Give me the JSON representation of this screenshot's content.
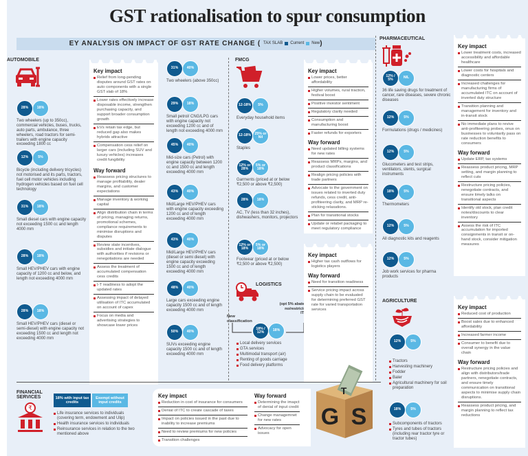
{
  "title": "GST rationalisation to spur consumption",
  "ey_bar": {
    "label": "EY ANALYSIS ON IMPACT OF GST RATE CHANGE (",
    "tax_slab": "TAX SLAB",
    "current": "Current",
    "new": "New",
    "close": ")"
  },
  "colors": {
    "current": "#0f5a8f",
    "new": "#5ab8e4",
    "accent_red": "#d0202a"
  },
  "automobile": {
    "title": "AUTOMOBILE",
    "icon": "car-wrench-icon",
    "rates": [
      {
        "current": "28%",
        "new": "18%",
        "desc": "Two wheelers (up to 350cc), commercial vehicles, buses, trucks, auto parts, ambulance, three wheelers, road tractors for semi-trailers with engine capacity exceeding 1800 cc"
      },
      {
        "current": "12%",
        "new": "5%",
        "desc": "Bicycle (including delivery tricycles) not motorised and its parts, tractors, fuel cell motor vehicles including hydrogen vehicles based on fuel cell technology"
      },
      {
        "current": "31%",
        "new": "18%",
        "desc": "Small diesel cars with engine capacity not exceeding 1500 cc and length 4000 mm"
      },
      {
        "current": "28%",
        "new": "18%",
        "desc": "Small HEV/PHEV cars with engine capacity of 1200 cc and below, and length not exceeding 4000 mm"
      },
      {
        "current": "28%",
        "new": "18%",
        "desc": "Small HEV/PHEV cars (diesel or semi-diesel) with engine capacity not exceeding 1500 cc and length not exceeding 4000 mm"
      }
    ],
    "rates_right": [
      {
        "current": "31%",
        "new": "40%",
        "desc": "Two wheelers (above 350cc)"
      },
      {
        "current": "29%",
        "new": "18%",
        "desc": "Small petrol/ CNG/LPG cars with engine capacity not exceeding 1200 cc and of length not exceeding 4000 mm"
      },
      {
        "current": "45%",
        "new": "40%",
        "desc": "Mid-size cars (Petrol) with engine capacity between 1200 cc and 1500 cc and length exceeding 4000 mm"
      },
      {
        "current": "43%",
        "new": "40%",
        "desc": "Mid/Large HEV/PHEV cars with engine capacity exceeding 1200 cc and of length exceeding 4000 mm"
      },
      {
        "current": "43%",
        "new": "40%",
        "desc": "Mid/Large HEV/PHEV cars (diesel or semi diesel) with engine capacity exceeding 1500 cc and of length exceeding 4000 mm"
      },
      {
        "current": "48%",
        "new": "40%",
        "desc": "Large cars exceeding engine capacity 1500 cc and of length exceeding 4000 mm"
      },
      {
        "current": "50%",
        "new": "40%",
        "desc": "SUVs exceeding engine capacity 1500 cc and of length exceeding 4000 mm"
      }
    ],
    "key_impact_title": "Key impact",
    "key_impact": [
      "Relief from long-pending disputes around GST rates on auto components with a single GST slab of 18%",
      "Lower rates effectively increase disposable income, strengthen purchasing capacity, and support broader consumption growth",
      "EVs retain tax edge, but reduced gap also makes hybrids attractive",
      "Compensation cess relief on larger cars (including SUV and luxury vehicles) increases credit fungibility"
    ],
    "way_forward_title": "Way forward",
    "way_forward": [
      "Reassess pricing structures to manage profitability, dealer margins, and customer expectations",
      "Manage inventory & working capital",
      "Align distribution chain in terms of pricing, managing returns, promotional schemes, compliance requirements to minimise disruptions and disputes",
      "Review state incentives, subsidies and initiate dialogue with authorities if revisions or renegotiations are needed",
      "Assess the treatment of accumulated compensation cess credits",
      "I-T readiness to adopt the updated rates",
      "Assessing impact of delayed utilisation of ITC accumulated on account of capex",
      "Focus on media and advertising strategies to showcase lower prices"
    ]
  },
  "fmcg": {
    "title": "FMCG",
    "icon": "shopping-cart-icon",
    "rates": [
      {
        "current": "12-18%",
        "new": "5%",
        "desc": "Everyday household items"
      },
      {
        "current": "12-18%",
        "new": "25% or Nil",
        "desc": "Staples"
      },
      {
        "current": "12% or 28%",
        "new": "5% or 18%",
        "desc": "Garments (priced at or below ₹2,500 or above ₹2,500)"
      },
      {
        "current": "28%",
        "new": "18%",
        "desc": "AC, TV (less than 32 inches), dishwashers, monitors, projectors"
      },
      {
        "current": "12% or 18%",
        "new": "5% or 18%",
        "desc": "Footwear (priced at or below ₹2,500 or above ₹2,500)"
      }
    ],
    "key_impact_title": "Key impact",
    "key_impact": [
      "Lower prices, better affordability",
      "Higher volumes, rural traction, festival boost",
      "Positive investor sentiment",
      "Regulatory clarity needed",
      "Consumption and manufacturing boost",
      "Faster refunds for exporters"
    ],
    "way_forward_title": "Way forward",
    "way_forward": [
      "Need updated billing systems for new rates",
      "Reassess MRPs, margins, and product classifications",
      "Realign pricing policies with trade partners",
      "Advocate to the government on issues related to inverted duty refunds, cess credit, anti-profiteering clarity, and MRP re-sticking relaxations.",
      "Plan for transitional stocks",
      "Update or relabel packaging to meet regulatory compliance"
    ]
  },
  "logistics": {
    "title": "LOGISTICS",
    "icon": "delivery-truck-clock-icon",
    "new_classification": "New classification",
    "note": "(opt 5% abated, no/restricted ITC)",
    "current": "18% / 12%",
    "new": "18%",
    "items": [
      "Local delivery services",
      "GTA services",
      "Multimodal transport (air)",
      "Renting of goods carriage",
      "Food delivery platforms"
    ],
    "key_impact_title": "Key impact",
    "key_impact": [
      "Higher tax cash outflows for logistics players"
    ],
    "way_forward_title": "Way forward",
    "way_forward": [
      "Need for transition readiness",
      "Service pricing impact across supply chain to be evaluated for determining preferred GST rate for varied transportation services"
    ]
  },
  "pharmaceutical": {
    "title": "PHARMACEUTICAL",
    "icon": "syringe-medicine-icon",
    "rates": [
      {
        "current": "12% / 5%",
        "new": "NIL",
        "desc": "36 life saving drugs for treatment of cancer, rare diseases, severe chronic diseases"
      },
      {
        "current": "12%",
        "new": "5%",
        "desc": "Formulations (drugs / medicines)"
      },
      {
        "current": "12%",
        "new": "5%",
        "desc": "Glucometers and test strips, ventilators, stents, surgical instruments"
      },
      {
        "current": "18%",
        "new": "5%",
        "desc": "Thermometers"
      },
      {
        "current": "12%",
        "new": "5%",
        "desc": "All diagnostic kits and reagents"
      },
      {
        "current": "12%",
        "new": "5%",
        "desc": "Job work services for pharma products"
      }
    ],
    "key_impact_title": "Key impact",
    "key_impact": [
      "Lower treatment costs, increased accessibility and affordable healthcare",
      "Lower costs for hospitals and diagnostic centers",
      "Increased challenges for manufacturing firms of accumulated ITC on account of inverted duty structure",
      "Transition planning and management for inventory and in-transit stock",
      "No immediate plans to revive anti-profiteering probes, onus on businesses to voluntarily pass on rate reduction benefits to consumers"
    ],
    "way_forward_title": "Way forward",
    "way_forward": [
      "Update ERP, tax systems",
      "Reassess product pricing, MRP setting, and margin planning to reflect cuts",
      "Restructure pricing policies, renegotiate contracts, and ensure timely talks on transitional aspects",
      "Identify old stock, plan credit notes/discounts to clear inventory",
      "Assess the risk of ITC accumulation for imported consignments in transit or on-hand stock, consider mitigation measures"
    ]
  },
  "agriculture": {
    "title": "AGRICULTURE",
    "icon": "plant-gear-icon",
    "rate1": {
      "current": "12%",
      "new": "5%"
    },
    "items1": [
      "Tractors",
      "Harvesting machinery",
      "Fodder",
      "Baler",
      "Agricultural machinery for soil preparation"
    ],
    "rate2": {
      "current": "18%",
      "new": "5%"
    },
    "items2": [
      "Subcomponents of tractors",
      "Tyres and tubes of tractors (including rear tractor tyre or tractor tubes)"
    ],
    "key_impact_title": "Key impact",
    "key_impact": [
      "Reduced cost of production",
      "Boost sales due to enhanced affordability",
      "Increased farmer income",
      "Consumer to benefit due to overall synergy in the value chain"
    ],
    "way_forward_title": "Way forward",
    "way_forward": [
      "Restructure pricing policies and align with distributors/trade partners, renegotiate contracts, and ensure timely communication on transitional aspects to minimise supply chain disruptions.",
      "Reassess product pricing, and margin planning to reflect tax reductions"
    ]
  },
  "financial": {
    "title": "FINANCIAL SERVICES",
    "icon": "bank-rupee-icon",
    "current": "18% with input tax credits",
    "new": "Exempt without input credits",
    "items": [
      "Life insurance services to individuals (covering term, endowment and Ulip)",
      "Health insurance services to individuals",
      "Reinsurance services in relation to the two mentioned above"
    ],
    "key_impact_title": "Key impact",
    "key_impact": [
      "Reduction in cost of insurance for consumers",
      "Denial of ITC to create cascade of taxes",
      "Impact on policies issued in the past due to inability to increase premiums",
      "Need to review premiums for new policies",
      "Transition challenges"
    ],
    "way_forward_title": "Way forward",
    "way_forward": [
      "Determining the imapct of denial of input credit",
      "Change managemnet for new rates",
      "Advocacy for open issues"
    ]
  },
  "illustration": {
    "label": "GST box with currency",
    "letters": [
      "G",
      "S",
      "T"
    ]
  }
}
